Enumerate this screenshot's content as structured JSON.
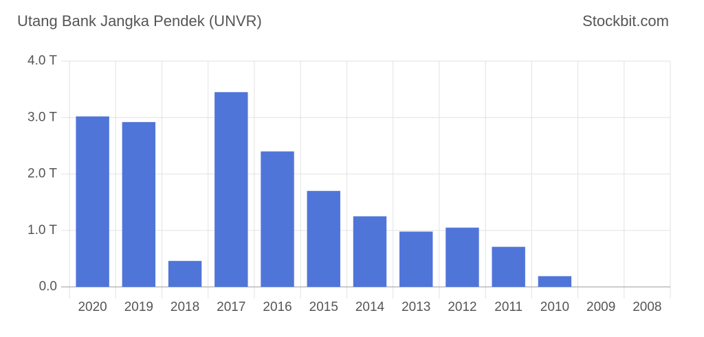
{
  "chart_data": {
    "type": "bar",
    "title": "Utang Bank Jangka Pendek (UNVR)",
    "source": "Stockbit.com",
    "categories": [
      "2020",
      "2019",
      "2018",
      "2017",
      "2016",
      "2015",
      "2014",
      "2013",
      "2012",
      "2011",
      "2010",
      "2009",
      "2008"
    ],
    "values": [
      3.02,
      2.92,
      0.46,
      3.45,
      2.4,
      1.7,
      1.25,
      0.98,
      1.05,
      0.71,
      0.19,
      0,
      0
    ],
    "color": "#5075d9",
    "ylim": [
      0,
      4
    ],
    "yticks": [
      {
        "value": 0,
        "label": "0.0"
      },
      {
        "value": 1,
        "label": "1.0 T"
      },
      {
        "value": 2,
        "label": "2.0 T"
      },
      {
        "value": 3,
        "label": "3.0 T"
      },
      {
        "value": 4,
        "label": "4.0 T"
      }
    ],
    "grid": true
  }
}
